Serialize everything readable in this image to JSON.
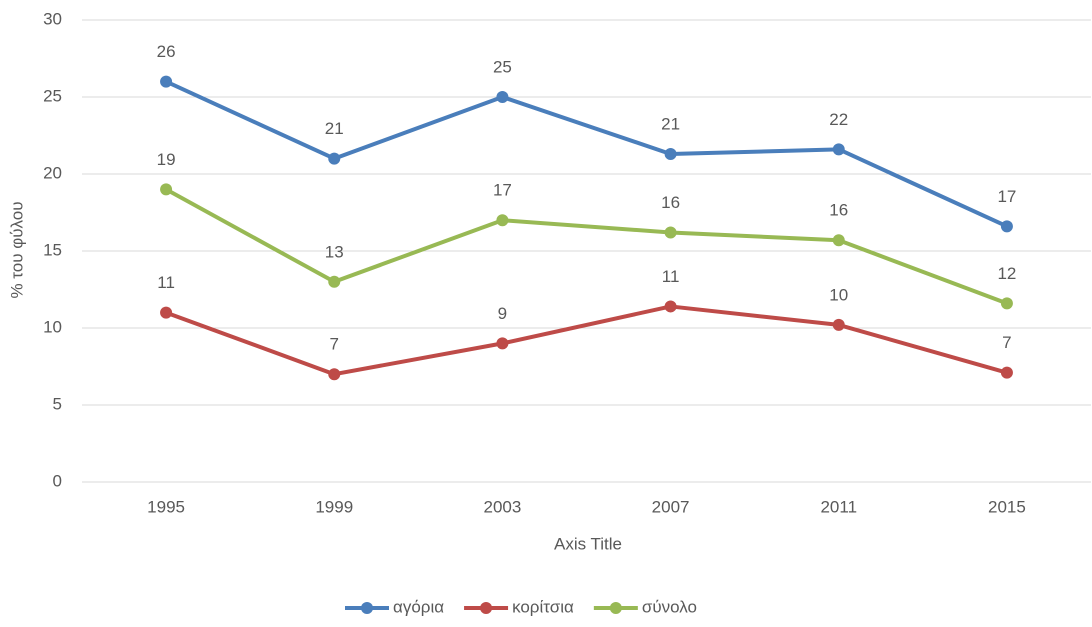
{
  "chart_data": {
    "type": "line",
    "x_label": "Axis Title",
    "y_label": "% του φύλου",
    "categories": [
      "1995",
      "1999",
      "2003",
      "2007",
      "2011",
      "2015"
    ],
    "series": [
      {
        "name": "αγόρια",
        "color": "#4a7ebb",
        "values": [
          26,
          21,
          25,
          21.3,
          21.6,
          16.6
        ],
        "value_labels": [
          "26",
          "21",
          "25",
          "21",
          "22",
          "17"
        ]
      },
      {
        "name": "κορίτσια",
        "color": "#be4b48",
        "values": [
          11,
          7,
          9,
          11.4,
          10.2,
          7.1
        ],
        "value_labels": [
          "11",
          "7",
          "9",
          "11",
          "10",
          "7"
        ]
      },
      {
        "name": "σύνολο",
        "color": "#98b954",
        "values": [
          19,
          13,
          17,
          16.2,
          15.7,
          11.6
        ],
        "value_labels": [
          "19",
          "13",
          "17",
          "16",
          "16",
          "12"
        ]
      }
    ],
    "ylim": [
      0,
      30
    ],
    "yticks": [
      0,
      5,
      10,
      15,
      20,
      25,
      30
    ],
    "grid": true,
    "legend": "bottom"
  }
}
